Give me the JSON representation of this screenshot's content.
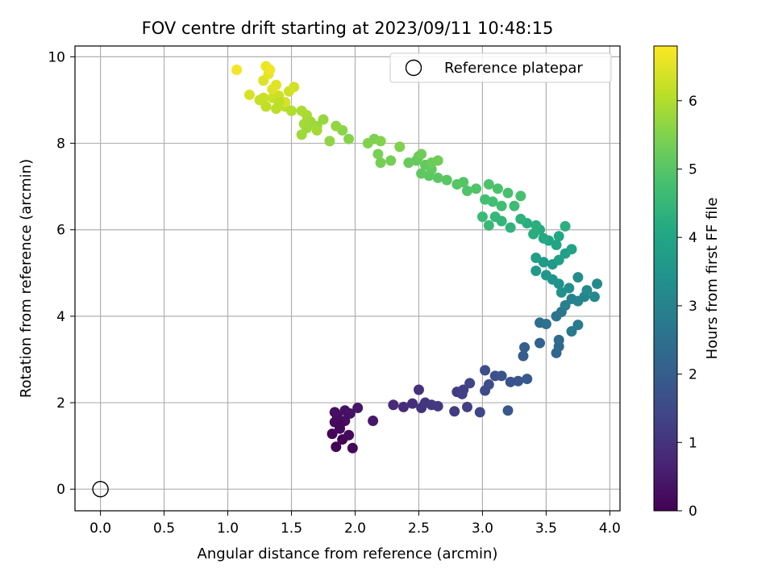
{
  "chart_data": {
    "type": "scatter",
    "title": "FOV centre drift starting at 2023/09/11 10:48:15",
    "xlabel": "Angular distance from reference (arcmin)",
    "ylabel": "Rotation from reference (arcmin)",
    "xlim": [
      -0.2,
      4.08
    ],
    "ylim": [
      -0.5,
      10.25
    ],
    "xticks": [
      0.0,
      0.5,
      1.0,
      1.5,
      2.0,
      2.5,
      3.0,
      3.5,
      4.0
    ],
    "xtick_labels": [
      "0.0",
      "0.5",
      "1.0",
      "1.5",
      "2.0",
      "2.5",
      "3.0",
      "3.5",
      "4.0"
    ],
    "yticks": [
      0,
      2,
      4,
      6,
      8,
      10
    ],
    "ytick_labels": [
      "0",
      "2",
      "4",
      "6",
      "8",
      "10"
    ],
    "grid": true,
    "colormap": "viridis",
    "colorbar": {
      "label": "Hours from first FF file",
      "range": [
        0,
        6.8
      ],
      "ticks": [
        0,
        1,
        2,
        3,
        4,
        5,
        6
      ],
      "tick_labels": [
        "0",
        "1",
        "2",
        "3",
        "4",
        "5",
        "6"
      ]
    },
    "legend": {
      "position": "top-right",
      "entries": [
        {
          "label": "Reference platepar",
          "marker": "open-circle"
        }
      ]
    },
    "reference_point": {
      "x": 0.0,
      "y": 0.0
    },
    "series": [
      {
        "points": [
          [
            1.85,
            0.98,
            0.05
          ],
          [
            1.98,
            0.95,
            0.12
          ],
          [
            1.9,
            1.15,
            0.08
          ],
          [
            1.95,
            1.25,
            0.15
          ],
          [
            1.82,
            1.28,
            0.1
          ],
          [
            1.88,
            1.4,
            0.18
          ],
          [
            1.84,
            1.55,
            0.2
          ],
          [
            1.92,
            1.58,
            0.25
          ],
          [
            1.86,
            1.68,
            0.22
          ],
          [
            1.84,
            1.78,
            0.28
          ],
          [
            1.92,
            1.82,
            0.3
          ],
          [
            1.96,
            1.75,
            0.33
          ],
          [
            2.02,
            1.88,
            0.4
          ],
          [
            2.14,
            1.58,
            0.45
          ],
          [
            1.88,
            1.48,
            0.14
          ],
          [
            2.3,
            1.95,
            0.8
          ],
          [
            2.38,
            1.9,
            0.85
          ],
          [
            2.45,
            1.98,
            0.9
          ],
          [
            2.5,
            2.3,
            0.95
          ],
          [
            2.52,
            1.88,
            1.0
          ],
          [
            2.55,
            2.0,
            1.05
          ],
          [
            2.6,
            1.95,
            1.1
          ],
          [
            2.65,
            1.92,
            1.12
          ],
          [
            2.78,
            1.8,
            1.15
          ],
          [
            2.8,
            2.25,
            1.2
          ],
          [
            2.85,
            2.3,
            1.25
          ],
          [
            2.88,
            1.9,
            1.28
          ],
          [
            2.9,
            2.45,
            1.35
          ],
          [
            2.84,
            2.2,
            1.3
          ],
          [
            2.98,
            1.78,
            1.4
          ],
          [
            3.02,
            2.28,
            1.5
          ],
          [
            3.05,
            2.42,
            1.55
          ],
          [
            3.02,
            2.75,
            1.6
          ],
          [
            3.1,
            2.62,
            1.65
          ],
          [
            3.15,
            2.62,
            1.7
          ],
          [
            3.22,
            2.48,
            1.75
          ],
          [
            3.28,
            2.5,
            1.8
          ],
          [
            3.2,
            1.82,
            1.85
          ],
          [
            3.35,
            2.55,
            1.9
          ],
          [
            3.32,
            3.08,
            2.0
          ],
          [
            3.33,
            3.28,
            2.05
          ],
          [
            3.45,
            3.38,
            2.15
          ],
          [
            3.58,
            3.15,
            2.25
          ],
          [
            3.6,
            3.3,
            2.3
          ],
          [
            3.6,
            3.45,
            2.35
          ],
          [
            3.45,
            3.85,
            2.45
          ],
          [
            3.5,
            3.82,
            2.55
          ],
          [
            3.58,
            4.0,
            2.6
          ],
          [
            3.62,
            4.1,
            2.65
          ],
          [
            3.7,
            3.65,
            2.75
          ],
          [
            3.75,
            3.8,
            2.8
          ],
          [
            3.65,
            4.25,
            2.9
          ],
          [
            3.7,
            4.4,
            3.0
          ],
          [
            3.75,
            4.35,
            3.05
          ],
          [
            3.8,
            4.45,
            3.1
          ],
          [
            3.88,
            4.45,
            3.15
          ],
          [
            3.82,
            4.6,
            3.2
          ],
          [
            3.9,
            4.75,
            3.25
          ],
          [
            3.75,
            4.9,
            3.3
          ],
          [
            3.68,
            4.65,
            3.35
          ],
          [
            3.62,
            4.55,
            3.4
          ],
          [
            3.6,
            4.75,
            3.45
          ],
          [
            3.55,
            4.85,
            3.5
          ],
          [
            3.5,
            4.95,
            3.55
          ],
          [
            3.42,
            5.05,
            3.6
          ],
          [
            3.55,
            5.2,
            3.65
          ],
          [
            3.48,
            5.25,
            3.7
          ],
          [
            3.42,
            5.35,
            3.75
          ],
          [
            3.6,
            5.3,
            3.8
          ],
          [
            3.65,
            5.45,
            3.85
          ],
          [
            3.7,
            5.55,
            3.9
          ],
          [
            3.58,
            5.65,
            3.95
          ],
          [
            3.52,
            5.75,
            4.0
          ],
          [
            3.6,
            5.85,
            4.05
          ],
          [
            3.48,
            5.8,
            4.1
          ],
          [
            3.45,
            6.0,
            4.15
          ],
          [
            3.4,
            5.9,
            4.2
          ],
          [
            3.35,
            6.15,
            4.25
          ],
          [
            3.42,
            6.1,
            4.28
          ],
          [
            3.65,
            6.08,
            4.3
          ],
          [
            3.3,
            6.25,
            4.35
          ],
          [
            3.22,
            6.05,
            4.4
          ],
          [
            3.15,
            6.2,
            4.45
          ],
          [
            3.1,
            6.3,
            4.5
          ],
          [
            3.05,
            6.1,
            4.55
          ],
          [
            3.0,
            6.3,
            4.6
          ],
          [
            3.25,
            6.55,
            4.65
          ],
          [
            3.15,
            6.55,
            4.7
          ],
          [
            3.08,
            6.65,
            4.72
          ],
          [
            3.02,
            6.7,
            4.75
          ],
          [
            3.3,
            6.78,
            4.78
          ],
          [
            3.2,
            6.85,
            4.8
          ],
          [
            3.12,
            6.95,
            4.85
          ],
          [
            3.05,
            7.05,
            4.88
          ],
          [
            2.95,
            6.95,
            4.9
          ],
          [
            2.88,
            6.9,
            4.92
          ],
          [
            2.85,
            7.1,
            4.95
          ],
          [
            2.8,
            7.05,
            5.0
          ],
          [
            2.72,
            7.15,
            5.02
          ],
          [
            2.65,
            7.2,
            5.05
          ],
          [
            2.58,
            7.25,
            5.08
          ],
          [
            2.52,
            7.3,
            5.1
          ],
          [
            2.6,
            7.4,
            5.12
          ],
          [
            2.55,
            7.5,
            5.15
          ],
          [
            2.48,
            7.6,
            5.18
          ],
          [
            2.42,
            7.55,
            5.2
          ],
          [
            2.5,
            7.7,
            5.22
          ],
          [
            2.6,
            7.55,
            5.25
          ],
          [
            2.65,
            7.6,
            5.28
          ],
          [
            2.52,
            7.75,
            5.3
          ],
          [
            2.28,
            7.6,
            5.35
          ],
          [
            2.2,
            7.55,
            5.38
          ],
          [
            2.18,
            7.75,
            5.4
          ],
          [
            2.15,
            8.1,
            5.45
          ],
          [
            2.1,
            8.0,
            5.5
          ],
          [
            2.2,
            8.05,
            5.52
          ],
          [
            2.35,
            7.92,
            5.48
          ],
          [
            1.95,
            8.1,
            5.55
          ],
          [
            1.9,
            8.3,
            5.6
          ],
          [
            1.8,
            8.05,
            5.65
          ],
          [
            1.85,
            8.4,
            5.7
          ],
          [
            1.75,
            8.55,
            5.72
          ],
          [
            1.7,
            8.4,
            5.75
          ],
          [
            1.65,
            8.5,
            5.78
          ],
          [
            1.62,
            8.35,
            5.8
          ],
          [
            1.58,
            8.2,
            5.82
          ],
          [
            1.6,
            8.45,
            5.85
          ],
          [
            1.7,
            8.3,
            5.88
          ],
          [
            1.62,
            8.65,
            5.9
          ],
          [
            1.58,
            8.75,
            5.95
          ],
          [
            1.5,
            8.75,
            6.0
          ],
          [
            1.45,
            8.85,
            6.05
          ],
          [
            1.38,
            8.8,
            6.1
          ],
          [
            1.3,
            8.85,
            6.15
          ],
          [
            1.28,
            9.05,
            6.2
          ],
          [
            1.35,
            9.05,
            6.25
          ],
          [
            1.4,
            9.1,
            6.28
          ],
          [
            1.48,
            9.2,
            6.3
          ],
          [
            1.52,
            9.3,
            6.35
          ],
          [
            1.45,
            8.95,
            6.38
          ],
          [
            1.17,
            9.12,
            6.4
          ],
          [
            1.28,
            9.45,
            6.45
          ],
          [
            1.35,
            9.25,
            6.48
          ],
          [
            1.38,
            9.35,
            6.5
          ],
          [
            1.32,
            9.6,
            6.55
          ],
          [
            1.3,
            9.78,
            6.6
          ],
          [
            1.33,
            9.7,
            6.65
          ],
          [
            1.07,
            9.7,
            6.7
          ],
          [
            1.25,
            9.0,
            6.22
          ],
          [
            1.4,
            8.95,
            6.12
          ]
        ]
      }
    ]
  }
}
